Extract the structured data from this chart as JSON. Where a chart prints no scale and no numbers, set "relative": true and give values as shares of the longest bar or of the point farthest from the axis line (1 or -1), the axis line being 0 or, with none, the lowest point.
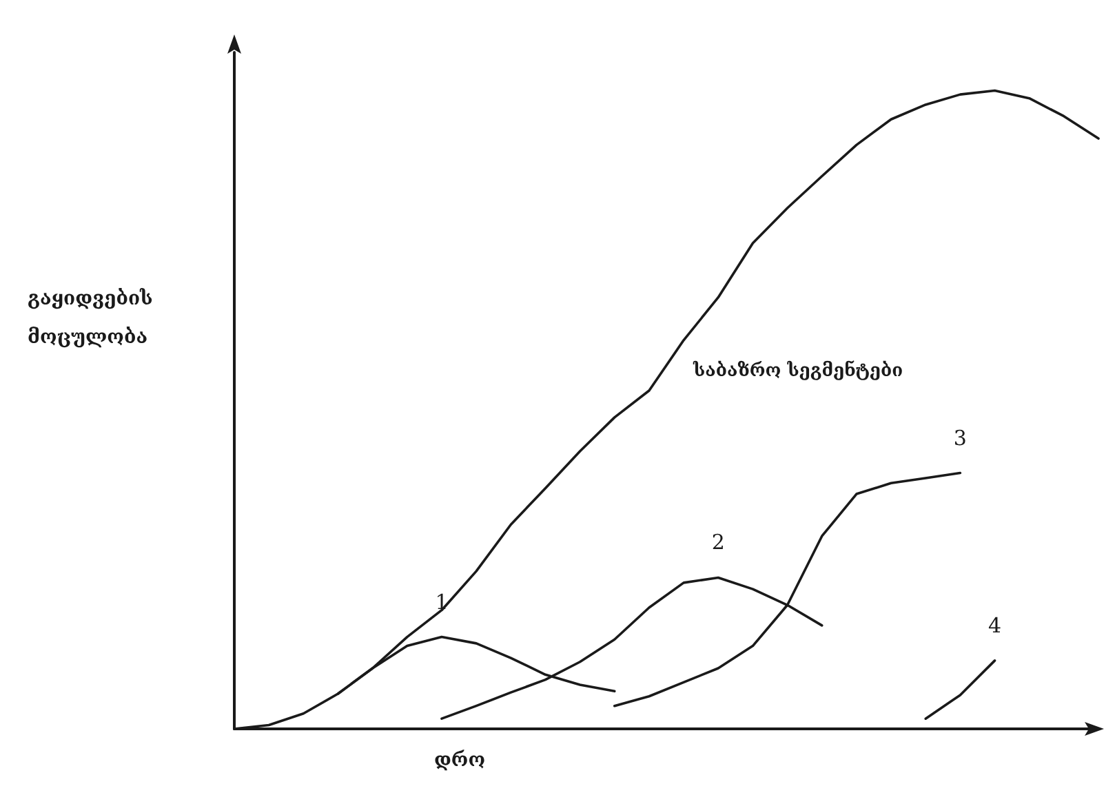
{
  "chart_data": {
    "type": "line",
    "relative": true,
    "xlabel": "დრო",
    "ylabel": "გაყიდვების მოცულობა",
    "annotations": [
      "საბაზრო სეგმენტები"
    ],
    "categories": [
      null,
      null,
      null,
      null,
      null,
      null,
      null,
      null,
      null,
      null,
      null,
      null,
      null,
      null,
      null,
      null,
      null,
      null,
      null,
      null,
      null,
      null,
      null,
      null,
      null,
      null
    ],
    "grid": false,
    "legend": false,
    "marker": "none",
    "line_style": "solid",
    "series": [
      {
        "color": "#1a1a1a",
        "values": [
          0,
          0.006,
          0.024,
          0.055,
          0.095,
          0.144,
          0.186,
          0.247,
          0.32,
          0.377,
          0.435,
          0.488,
          0.53,
          0.609,
          0.676,
          0.761,
          0.816,
          0.866,
          0.915,
          0.955,
          0.978,
          0.994,
          1,
          0.988,
          0.96,
          0.925
        ]
      },
      {
        "name": "1",
        "color": "#1a1a1a",
        "values": [
          null,
          null,
          null,
          0.055,
          0.095,
          0.13,
          0.144,
          0.134,
          0.111,
          0.085,
          0.069,
          0.059,
          null,
          null,
          null,
          null,
          null,
          null,
          null,
          null,
          null,
          null,
          null,
          null,
          null,
          null
        ]
      },
      {
        "name": "2",
        "color": "#1a1a1a",
        "values": [
          null,
          null,
          null,
          null,
          null,
          null,
          0.016,
          0.036,
          0.057,
          0.077,
          0.105,
          0.14,
          0.19,
          0.229,
          0.237,
          0.219,
          0.194,
          0.162,
          null,
          null,
          null,
          null,
          null,
          null,
          null,
          null
        ]
      },
      {
        "name": "3",
        "color": "#1a1a1a",
        "values": [
          null,
          null,
          null,
          null,
          null,
          null,
          null,
          null,
          null,
          null,
          null,
          0.036,
          0.051,
          0.073,
          0.095,
          0.13,
          0.194,
          0.302,
          0.368,
          0.385,
          0.393,
          0.401,
          null,
          null,
          null,
          null
        ]
      },
      {
        "name": "4",
        "color": "#1a1a1a",
        "values": [
          null,
          null,
          null,
          null,
          null,
          null,
          null,
          null,
          null,
          null,
          null,
          null,
          null,
          null,
          null,
          null,
          null,
          null,
          null,
          null,
          0.016,
          0.053,
          0.107,
          null,
          null,
          null
        ]
      }
    ]
  }
}
